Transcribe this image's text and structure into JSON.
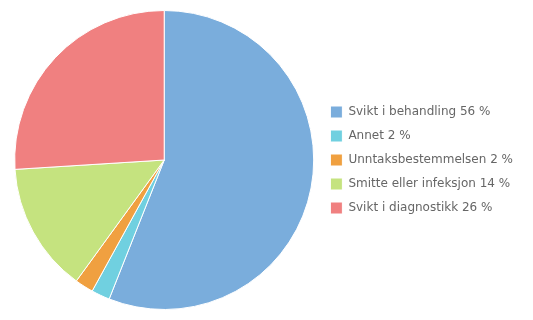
{
  "chart_data": {
    "type": "pie",
    "categories": [
      "Svikt i behandling 56 %",
      "Annet 2 %",
      "Unntaksbestemmelsen 2 %",
      "Smitte eller infeksjon 14 %",
      "Svikt i diagnostikk 26 %"
    ],
    "values": [
      56,
      2,
      2,
      14,
      26
    ],
    "colors": [
      "#7aaddc",
      "#70d0e0",
      "#f0a040",
      "#c5e37f",
      "#f08080"
    ],
    "legend": "right"
  }
}
